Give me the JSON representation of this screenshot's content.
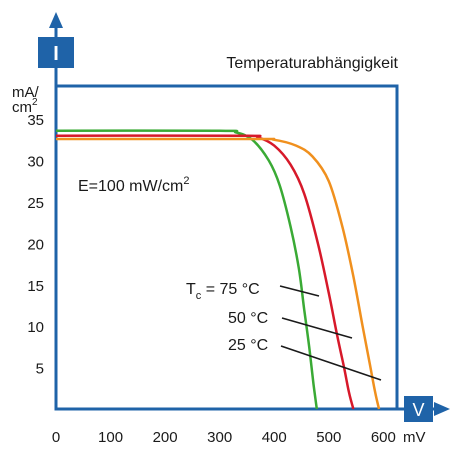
{
  "chart_data": {
    "type": "line",
    "title": "Temperaturabhängigkeit",
    "xlabel_badge": "V",
    "ylabel_badge": "I",
    "x_unit": "mV",
    "y_unit_top": "mA/",
    "y_unit_bottom": "cm",
    "y_unit_exp": "2",
    "xlim": [
      0,
      625
    ],
    "ylim": [
      0,
      39
    ],
    "x_ticks": [
      0,
      100,
      200,
      300,
      400,
      500,
      600
    ],
    "y_ticks": [
      5,
      10,
      15,
      20,
      25,
      30,
      35
    ],
    "grid": false,
    "annotation": {
      "text": "E=100 mW/cm",
      "sup": "2"
    },
    "series": [
      {
        "name": "75 °C",
        "prefix": "T",
        "sub": "c",
        "label_tail": " = 75 °C",
        "color": "#3aaa35",
        "x": [
          0,
          300,
          330,
          360,
          390,
          410,
          430,
          445,
          455,
          465,
          472,
          478
        ],
        "y": [
          33.6,
          33.6,
          33.4,
          32.5,
          30.0,
          27.0,
          22.0,
          17.0,
          12.0,
          7.0,
          3.0,
          0
        ]
      },
      {
        "name": "50 °C",
        "label": "50 °C",
        "color": "#d7192a",
        "x": [
          0,
          340,
          370,
          400,
          430,
          455,
          480,
          500,
          515,
          528,
          537,
          545
        ],
        "y": [
          33.0,
          33.0,
          32.8,
          31.8,
          29.5,
          26.0,
          20.0,
          14.0,
          9.0,
          5.0,
          2.0,
          0
        ]
      },
      {
        "name": "25 °C",
        "label": "25 °C",
        "color": "#f0901e",
        "x": [
          0,
          360,
          400,
          440,
          470,
          500,
          525,
          545,
          562,
          575,
          585,
          592
        ],
        "y": [
          32.6,
          32.6,
          32.5,
          31.8,
          30.5,
          27.5,
          22.0,
          16.0,
          10.0,
          5.5,
          2.0,
          0
        ]
      }
    ]
  }
}
